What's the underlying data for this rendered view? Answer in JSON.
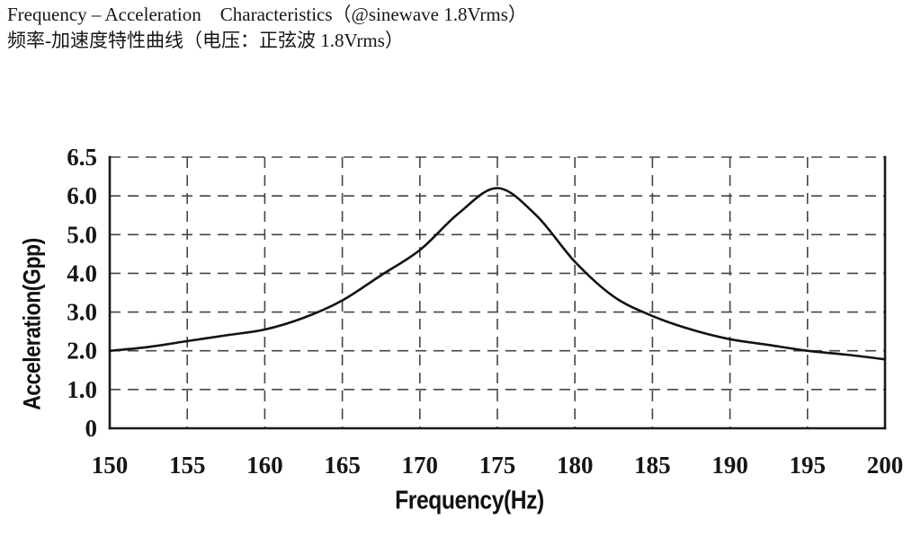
{
  "header": {
    "title_en": "Frequency – Acceleration    Characteristics（@sinewave 1.8Vrms）",
    "title_zh": "频率-加速度特性曲线（电压：正弦波 1.8Vrms）"
  },
  "chart_data": {
    "type": "line",
    "title": "Frequency – Acceleration Characteristics (@sinewave 1.8Vrms)",
    "xlabel": "Frequency(Hz)",
    "ylabel": "Acceleration(Gpp)",
    "xlim": [
      150,
      200
    ],
    "x_ticks": [
      150,
      155,
      160,
      165,
      170,
      175,
      180,
      185,
      190,
      195,
      200
    ],
    "y_tick_labels": [
      "0",
      "1.0",
      "2.0",
      "3.0",
      "4.0",
      "5.0",
      "6.0",
      "6.5"
    ],
    "y_tick_values": [
      0,
      1,
      2,
      3,
      4,
      5,
      6,
      6.5
    ],
    "y_axis_note": "eight tick rows evenly spaced; top division spans 6.0 to 6.5",
    "grid": "dashed both axes, solid left/right/bottom frame, dashed top edge",
    "legend": "none",
    "series": [
      {
        "name": "acceleration",
        "x": [
          150,
          152.5,
          155,
          157.5,
          160,
          162.5,
          165,
          167.5,
          170,
          172.5,
          175,
          177.5,
          180,
          182.5,
          185,
          187.5,
          190,
          192.5,
          195,
          197.5,
          200
        ],
        "y": [
          2.0,
          2.1,
          2.25,
          2.4,
          2.55,
          2.85,
          3.3,
          3.95,
          4.6,
          5.55,
          6.1,
          5.5,
          4.3,
          3.4,
          2.9,
          2.55,
          2.3,
          2.15,
          2.0,
          1.9,
          1.78
        ]
      }
    ],
    "annotations": {
      "peak_frequency_hz": 175,
      "peak_acceleration_gpp": 6.1
    },
    "colors": {
      "line": "#131313",
      "grid": "#454545",
      "frame": "#1a1a1a",
      "text": "#161616",
      "background": "#ffffff"
    }
  }
}
